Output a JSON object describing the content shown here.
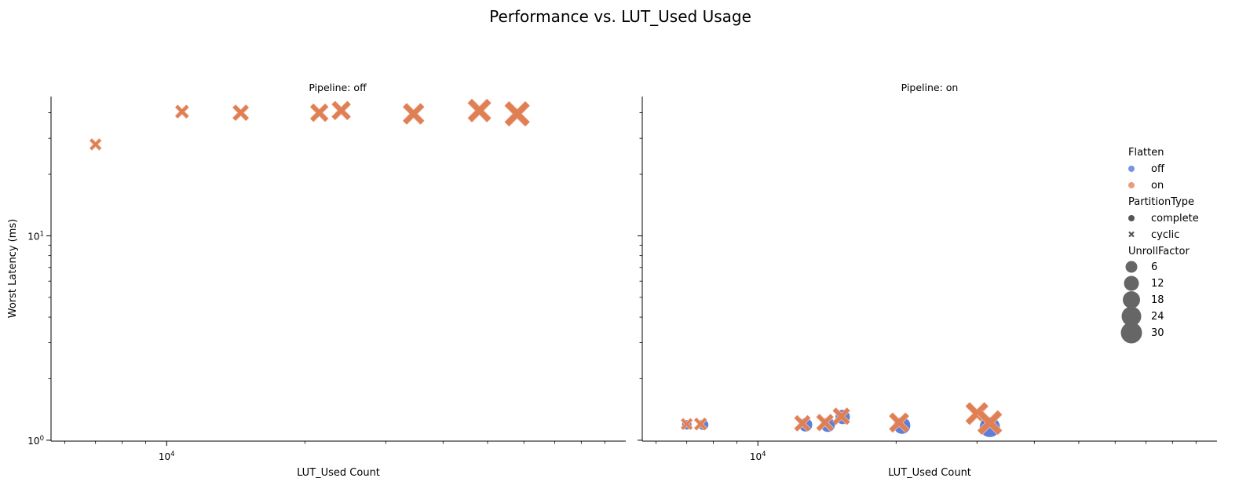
{
  "figure": {
    "title": "Performance vs. LUT_Used Usage"
  },
  "chart_data": [
    {
      "type": "scatter",
      "title": "Pipeline: off",
      "xlabel": "LUT_Used Count",
      "ylabel": "Worst Latency (ms)",
      "xscale": "log",
      "yscale": "log",
      "xlim": [
        5600,
        100000
      ],
      "ylim": [
        0.99,
        48
      ],
      "xticks": [
        {
          "value": 10000,
          "label": "10^4"
        }
      ],
      "yticks": [
        {
          "value": 1,
          "label": "10^0"
        },
        {
          "value": 10,
          "label": "10^1"
        }
      ],
      "points": [
        {
          "x": 7000,
          "y": 28,
          "flatten": "on",
          "partition": "cyclic",
          "unroll": 2
        },
        {
          "x": 10800,
          "y": 40.5,
          "flatten": "on",
          "partition": "cyclic",
          "unroll": 4
        },
        {
          "x": 14500,
          "y": 40.0,
          "flatten": "on",
          "partition": "cyclic",
          "unroll": 8
        },
        {
          "x": 21500,
          "y": 40.0,
          "flatten": "on",
          "partition": "cyclic",
          "unroll": 12
        },
        {
          "x": 24000,
          "y": 41.0,
          "flatten": "on",
          "partition": "cyclic",
          "unroll": 14
        },
        {
          "x": 34500,
          "y": 39.5,
          "flatten": "on",
          "partition": "cyclic",
          "unroll": 20
        },
        {
          "x": 48000,
          "y": 41.0,
          "flatten": "on",
          "partition": "cyclic",
          "unroll": 26
        },
        {
          "x": 58000,
          "y": 39.5,
          "flatten": "on",
          "partition": "cyclic",
          "unroll": 32
        }
      ]
    },
    {
      "type": "scatter",
      "title": "Pipeline: on",
      "xlabel": "LUT_Used Count",
      "ylabel": "",
      "xscale": "log",
      "yscale": "log",
      "xlim": [
        5600,
        100000
      ],
      "ylim": [
        0.99,
        48
      ],
      "xticks": [
        {
          "value": 10000,
          "label": "10^4"
        }
      ],
      "yticks": [],
      "points": [
        {
          "x": 7000,
          "y": 1.19,
          "flatten": "off",
          "partition": "complete",
          "unroll": 2
        },
        {
          "x": 7000,
          "y": 1.2,
          "flatten": "on",
          "partition": "cyclic",
          "unroll": 2
        },
        {
          "x": 7600,
          "y": 1.19,
          "flatten": "off",
          "partition": "complete",
          "unroll": 3
        },
        {
          "x": 7500,
          "y": 1.2,
          "flatten": "on",
          "partition": "cyclic",
          "unroll": 3
        },
        {
          "x": 12700,
          "y": 1.19,
          "flatten": "off",
          "partition": "complete",
          "unroll": 8
        },
        {
          "x": 12500,
          "y": 1.21,
          "flatten": "on",
          "partition": "cyclic",
          "unroll": 8
        },
        {
          "x": 14200,
          "y": 1.19,
          "flatten": "off",
          "partition": "complete",
          "unroll": 10
        },
        {
          "x": 14000,
          "y": 1.22,
          "flatten": "on",
          "partition": "cyclic",
          "unroll": 10
        },
        {
          "x": 15300,
          "y": 1.3,
          "flatten": "off",
          "partition": "complete",
          "unroll": 10
        },
        {
          "x": 15200,
          "y": 1.31,
          "flatten": "on",
          "partition": "cyclic",
          "unroll": 10
        },
        {
          "x": 20600,
          "y": 1.18,
          "flatten": "off",
          "partition": "complete",
          "unroll": 16
        },
        {
          "x": 20300,
          "y": 1.22,
          "flatten": "on",
          "partition": "cyclic",
          "unroll": 16
        },
        {
          "x": 30000,
          "y": 1.35,
          "flatten": "on",
          "partition": "cyclic",
          "unroll": 24
        },
        {
          "x": 32000,
          "y": 1.16,
          "flatten": "off",
          "partition": "complete",
          "unroll": 28
        },
        {
          "x": 32000,
          "y": 1.22,
          "flatten": "on",
          "partition": "cyclic",
          "unroll": 30
        }
      ]
    }
  ],
  "legend": {
    "placement": "right",
    "hue_title": "Flatten",
    "hue": [
      {
        "label": "off",
        "color": "#4c72d8"
      },
      {
        "label": "on",
        "color": "#e07b4f"
      }
    ],
    "style_title": "PartitionType",
    "style": [
      {
        "label": "complete",
        "marker": "circle"
      },
      {
        "label": "cyclic",
        "marker": "x"
      }
    ],
    "size_title": "UnrollFactor",
    "sizes": [
      {
        "label": "6",
        "value": 6
      },
      {
        "label": "12",
        "value": 12
      },
      {
        "label": "18",
        "value": 18
      },
      {
        "label": "24",
        "value": 24
      },
      {
        "label": "30",
        "value": 30
      }
    ]
  },
  "colors": {
    "off": "#4c72d8",
    "on": "#e07b4f",
    "legend_marker": "#666666"
  }
}
